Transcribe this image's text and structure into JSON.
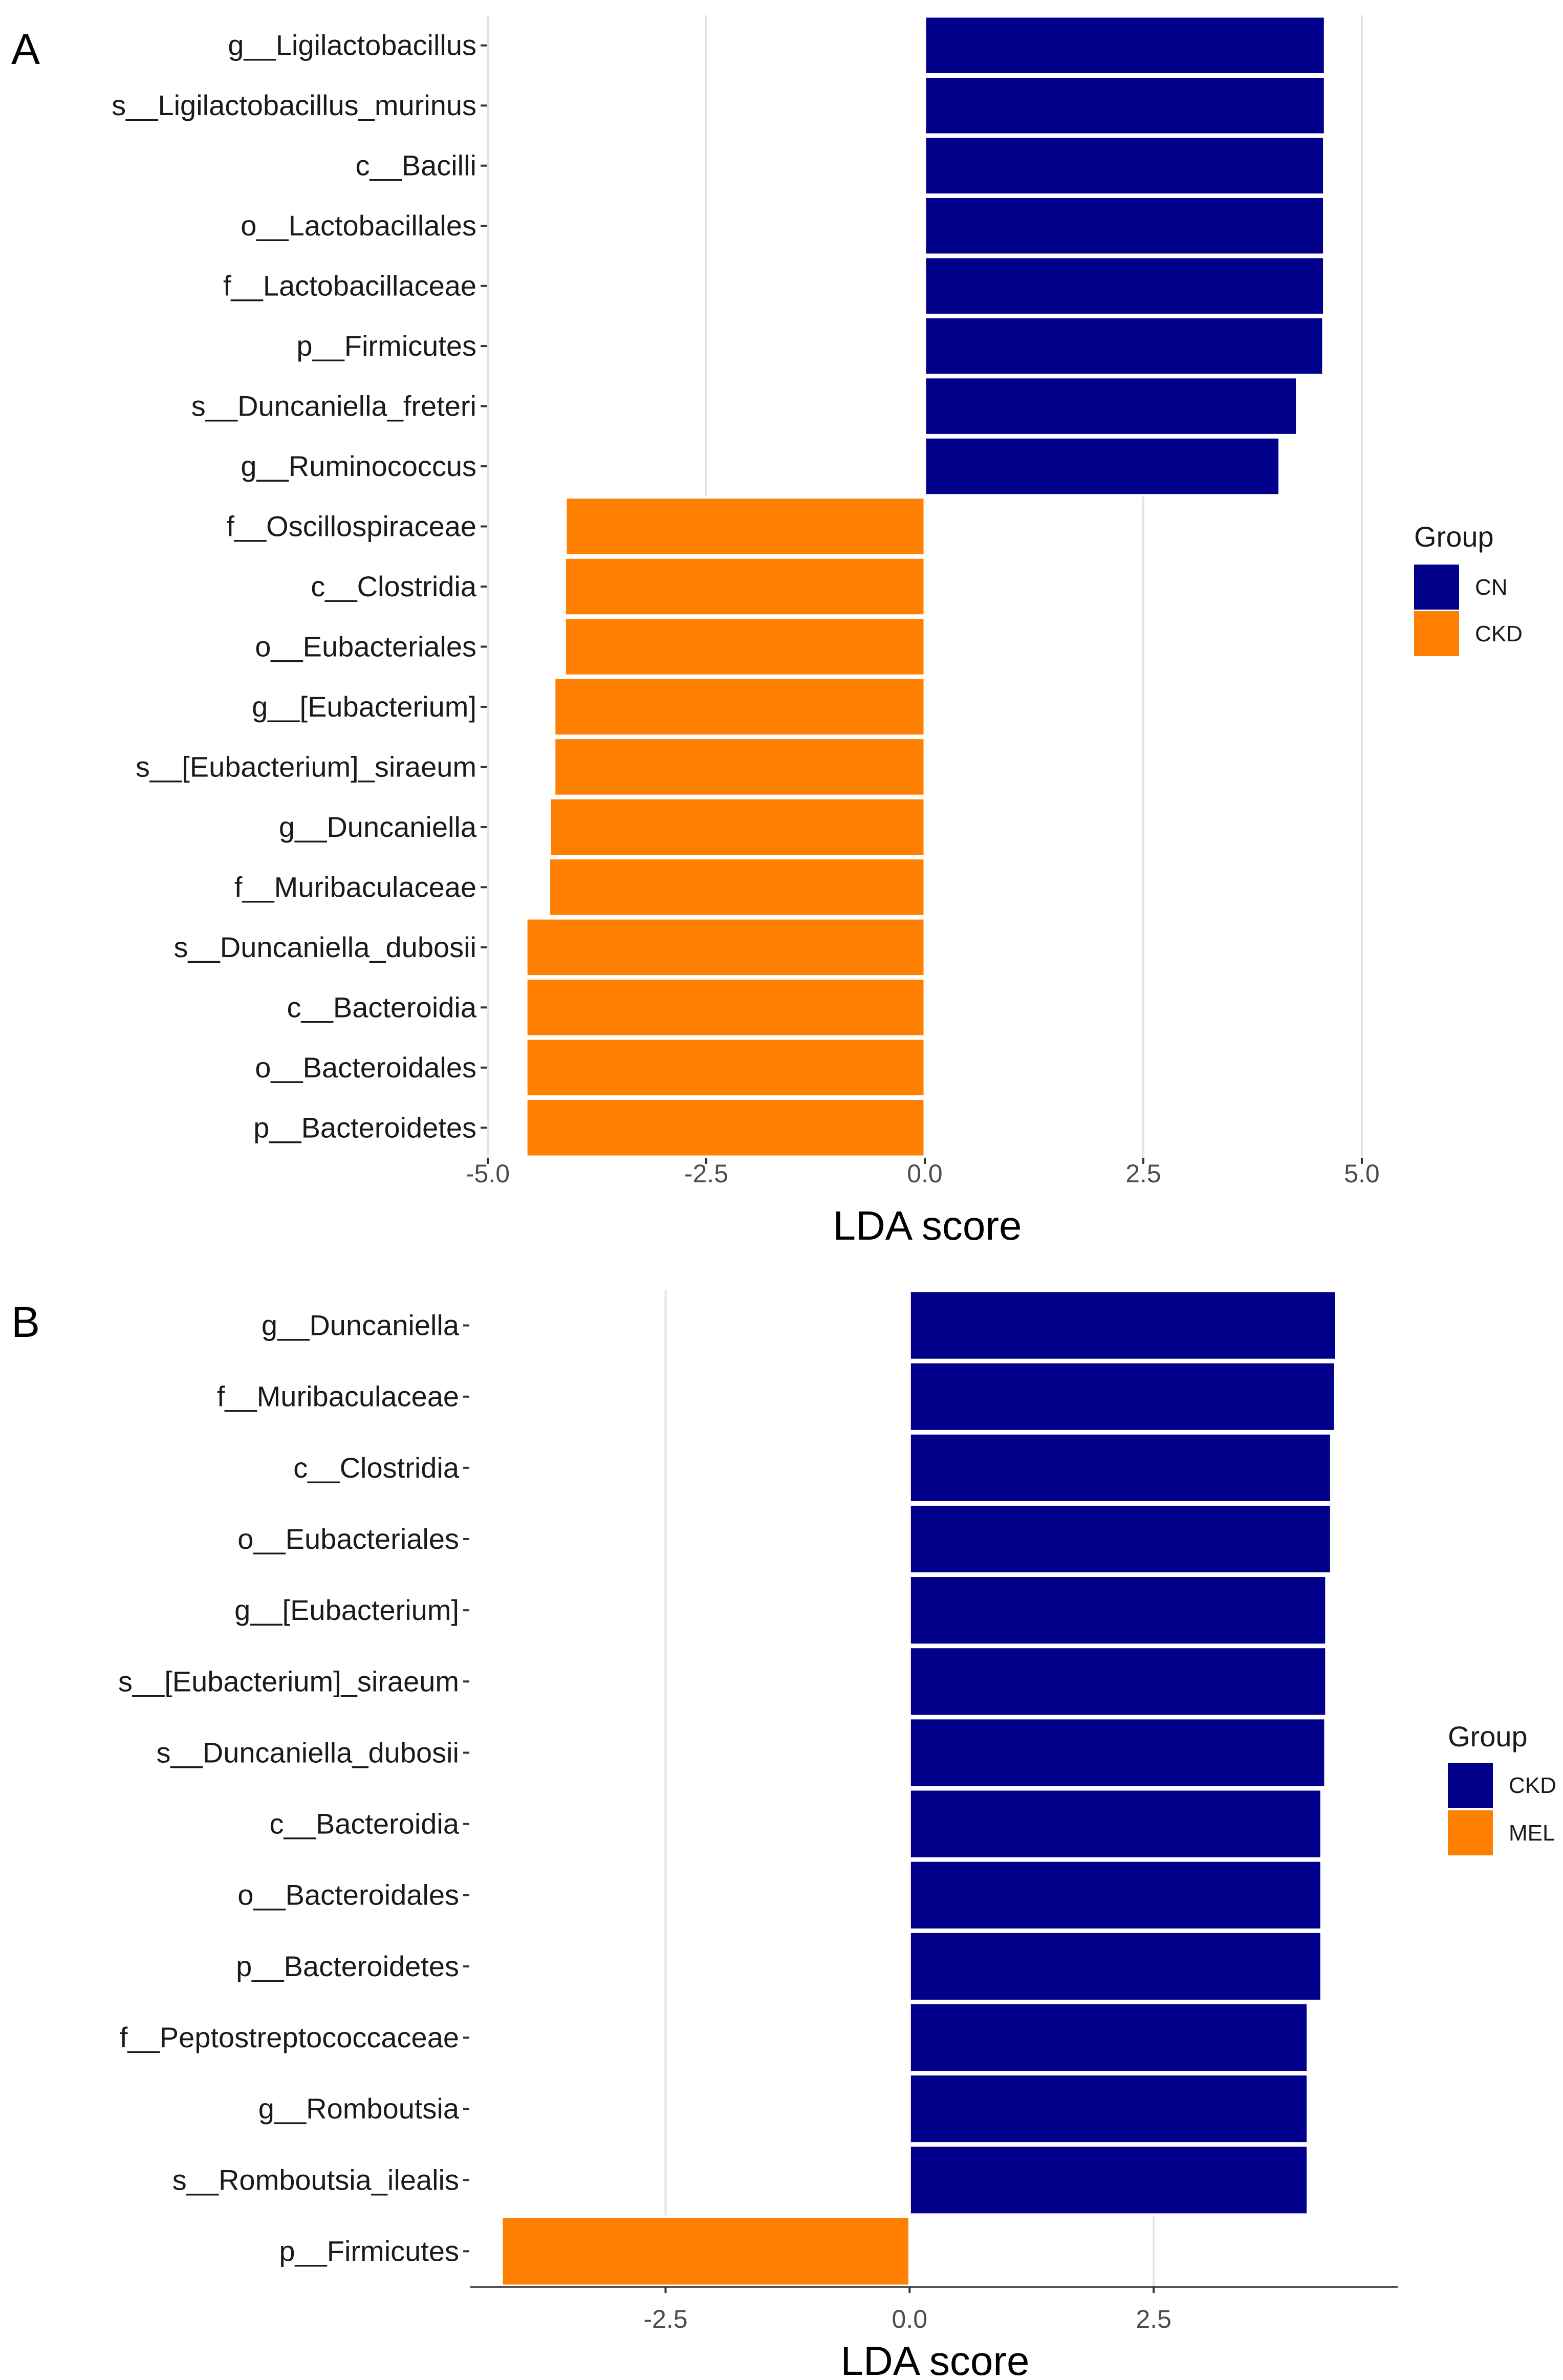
{
  "chart_data": [
    {
      "type": "bar",
      "orientation": "horizontal",
      "panel_label": "A",
      "xlabel": "LDA score",
      "xlim": [
        -5.0,
        5.0
      ],
      "xticks": [
        -5.0,
        -2.5,
        0.0,
        2.5,
        5.0
      ],
      "xtick_labels": [
        "-5.0",
        "-2.5",
        "0.0",
        "2.5",
        "5.0"
      ],
      "grid": true,
      "legend": {
        "title": "Group",
        "placement": "right",
        "entries": [
          {
            "label": "CN",
            "color": "#00008B"
          },
          {
            "label": "CKD",
            "color": "#FF7F00"
          }
        ]
      },
      "bars": [
        {
          "label": "g__Ligilactobacillus",
          "value": 4.58,
          "group": "CN"
        },
        {
          "label": "s__Ligilactobacillus_murinus",
          "value": 4.58,
          "group": "CN"
        },
        {
          "label": "c__Bacilli",
          "value": 4.57,
          "group": "CN"
        },
        {
          "label": "o__Lactobacillales",
          "value": 4.57,
          "group": "CN"
        },
        {
          "label": "f__Lactobacillaceae",
          "value": 4.57,
          "group": "CN"
        },
        {
          "label": "p__Firmicutes",
          "value": 4.56,
          "group": "CN"
        },
        {
          "label": "s__Duncaniella_freteri",
          "value": 4.26,
          "group": "CN"
        },
        {
          "label": "g__Ruminococcus",
          "value": 4.06,
          "group": "CN"
        },
        {
          "label": "f__Oscillospiraceae",
          "value": -4.11,
          "group": "CKD"
        },
        {
          "label": "c__Clostridia",
          "value": -4.12,
          "group": "CKD"
        },
        {
          "label": "o__Eubacteriales",
          "value": -4.12,
          "group": "CKD"
        },
        {
          "label": "g__[Eubacterium]",
          "value": -4.24,
          "group": "CKD"
        },
        {
          "label": "s__[Eubacterium]_siraeum",
          "value": -4.24,
          "group": "CKD"
        },
        {
          "label": "g__Duncaniella",
          "value": -4.29,
          "group": "CKD"
        },
        {
          "label": "f__Muribaculaceae",
          "value": -4.3,
          "group": "CKD"
        },
        {
          "label": "s__Duncaniella_dubosii",
          "value": -4.56,
          "group": "CKD"
        },
        {
          "label": "c__Bacteroidia",
          "value": -4.56,
          "group": "CKD"
        },
        {
          "label": "o__Bacteroidales",
          "value": -4.56,
          "group": "CKD"
        },
        {
          "label": "p__Bacteroidetes",
          "value": -4.56,
          "group": "CKD"
        }
      ]
    },
    {
      "type": "bar",
      "orientation": "horizontal",
      "panel_label": "B",
      "xlabel": "LDA score",
      "xlim": [
        -4.5,
        5.0
      ],
      "xticks": [
        -2.5,
        0.0,
        2.5
      ],
      "xtick_labels": [
        "-2.5",
        "0.0",
        "2.5"
      ],
      "grid": true,
      "legend": {
        "title": "Group",
        "placement": "right",
        "entries": [
          {
            "label": "CKD",
            "color": "#00008B"
          },
          {
            "label": "MEL",
            "color": "#FF7F00"
          }
        ]
      },
      "bars": [
        {
          "label": "g__Duncaniella",
          "value": 4.37,
          "group": "CKD"
        },
        {
          "label": "f__Muribaculaceae",
          "value": 4.36,
          "group": "CKD"
        },
        {
          "label": "c__Clostridia",
          "value": 4.32,
          "group": "CKD"
        },
        {
          "label": "o__Eubacteriales",
          "value": 4.32,
          "group": "CKD"
        },
        {
          "label": "g__[Eubacterium]",
          "value": 4.27,
          "group": "CKD"
        },
        {
          "label": "s__[Eubacterium]_siraeum",
          "value": 4.27,
          "group": "CKD"
        },
        {
          "label": "s__Duncaniella_dubosii",
          "value": 4.26,
          "group": "CKD"
        },
        {
          "label": "c__Bacteroidia",
          "value": 4.22,
          "group": "CKD"
        },
        {
          "label": "o__Bacteroidales",
          "value": 4.22,
          "group": "CKD"
        },
        {
          "label": "p__Bacteroidetes",
          "value": 4.22,
          "group": "CKD"
        },
        {
          "label": "f__Peptostreptococcaceae",
          "value": 4.08,
          "group": "CKD"
        },
        {
          "label": "g__Romboutsia",
          "value": 4.08,
          "group": "CKD"
        },
        {
          "label": "s__Romboutsia_ilealis",
          "value": 4.08,
          "group": "CKD"
        },
        {
          "label": "p__Firmicutes",
          "value": -4.18,
          "group": "MEL"
        }
      ]
    }
  ]
}
